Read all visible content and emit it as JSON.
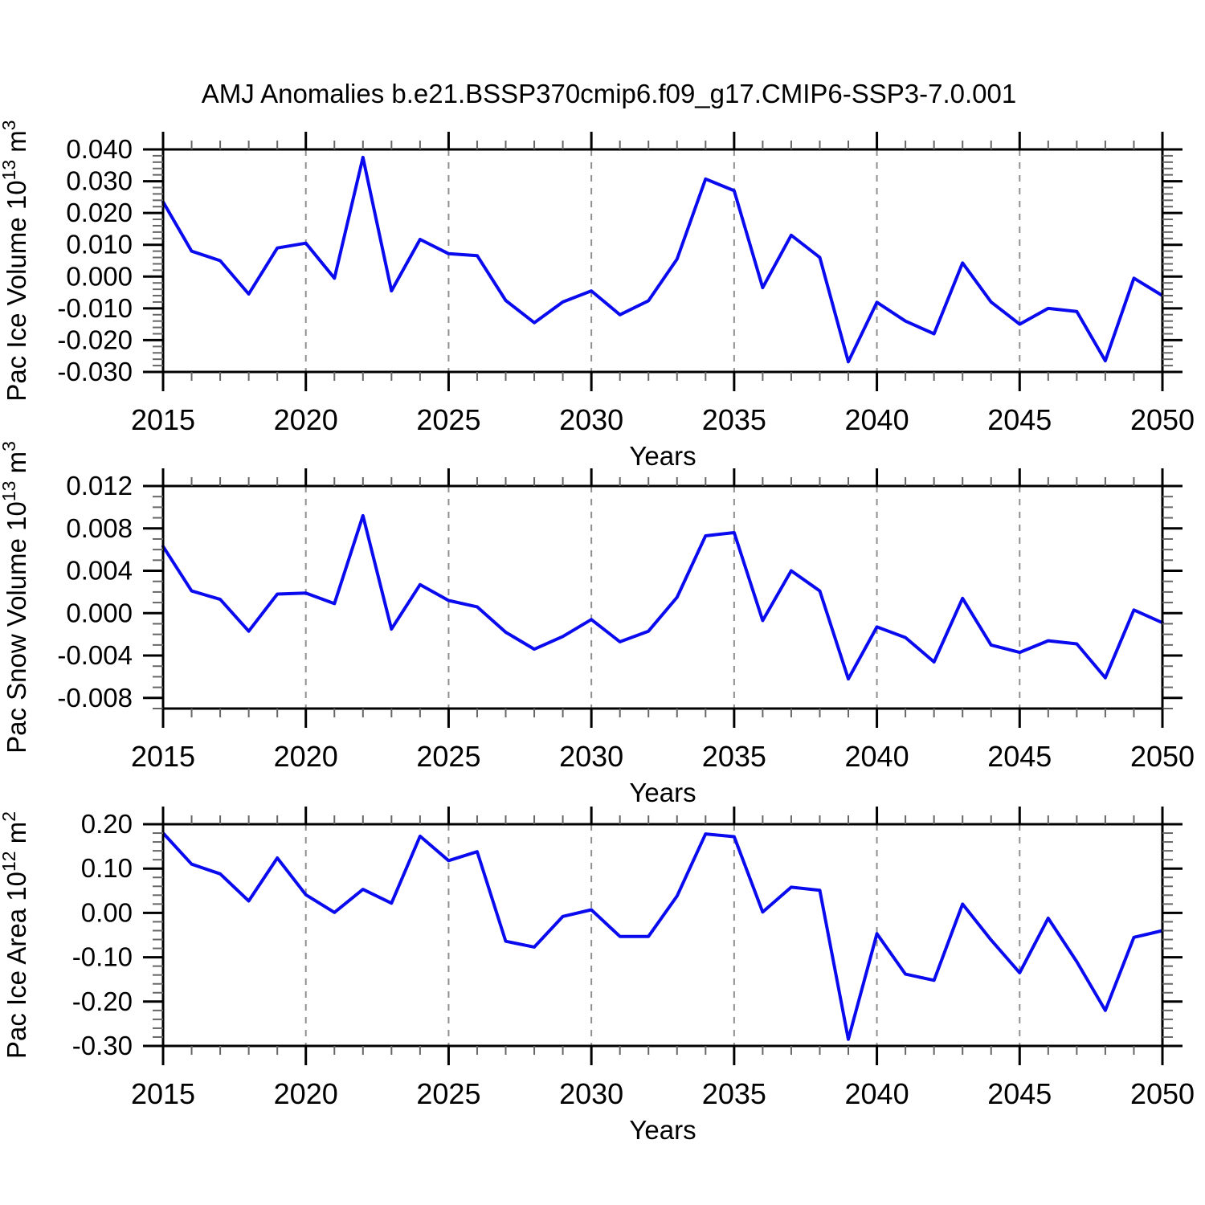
{
  "title": "AMJ Anomalies b.e21.BSSP370cmip6.f09_g17.CMIP6-SSP3-7.0.001",
  "colors": {
    "line": "#0a0aee",
    "axis": "#000000",
    "minor_tick": "#666666",
    "grid": "#8f8f8f"
  },
  "x_axis": {
    "label": "Years",
    "range": [
      2015,
      2050
    ],
    "major_tick_years": [
      2015,
      2020,
      2025,
      2030,
      2035,
      2040,
      2045,
      2050
    ],
    "major_tick_labels": [
      "2015",
      "2020",
      "2025",
      "2030",
      "2035",
      "2040",
      "2045",
      "2050"
    ],
    "minor_step": 1,
    "grid_years": [
      2020,
      2025,
      2030,
      2035,
      2040,
      2045
    ],
    "grid_style": "dashed"
  },
  "chart_data": [
    {
      "type": "line",
      "ylabel": "Pac Ice Volume 10^13 m^3",
      "ylabel_parts": [
        {
          "text": "Pac Ice Volume 10"
        },
        {
          "sup": "13"
        },
        {
          "text": " m"
        },
        {
          "sup": "3"
        }
      ],
      "ylim": [
        -0.03,
        0.04
      ],
      "y_minor_step": 0.002,
      "y_ticks": [
        {
          "v": 0.04,
          "label": "0.040"
        },
        {
          "v": 0.03,
          "label": "0.030"
        },
        {
          "v": 0.02,
          "label": "0.020"
        },
        {
          "v": 0.01,
          "label": "0.010"
        },
        {
          "v": 0.0,
          "label": "0.000"
        },
        {
          "v": -0.01,
          "label": "-0.010"
        },
        {
          "v": -0.02,
          "label": "-0.020"
        },
        {
          "v": -0.03,
          "label": "-0.030"
        }
      ],
      "x": [
        2015,
        2016,
        2017,
        2018,
        2019,
        2020,
        2021,
        2022,
        2023,
        2024,
        2025,
        2026,
        2027,
        2028,
        2029,
        2030,
        2031,
        2032,
        2033,
        2034,
        2035,
        2036,
        2037,
        2038,
        2039,
        2040,
        2041,
        2042,
        2043,
        2044,
        2045,
        2046,
        2047,
        2048,
        2049,
        2050
      ],
      "values": [
        0.0235,
        0.008,
        0.005,
        -0.0055,
        0.009,
        0.0105,
        -0.0005,
        0.0375,
        -0.0045,
        0.0117,
        0.0072,
        0.0066,
        -0.0075,
        -0.0145,
        -0.008,
        -0.0045,
        -0.012,
        -0.0076,
        0.0055,
        0.0307,
        0.027,
        -0.0035,
        0.013,
        0.006,
        -0.0268,
        -0.0081,
        -0.014,
        -0.018,
        0.0043,
        -0.008,
        -0.015,
        -0.01,
        -0.011,
        -0.0265,
        -0.0005,
        -0.006
      ]
    },
    {
      "type": "line",
      "ylabel": "Pac Snow Volume 10^13 m^3",
      "ylabel_parts": [
        {
          "text": "Pac Snow Volume 10"
        },
        {
          "sup": "13"
        },
        {
          "text": " m"
        },
        {
          "sup": "3"
        }
      ],
      "ylim": [
        -0.009,
        0.012
      ],
      "y_minor_step": 0.001,
      "y_ticks": [
        {
          "v": 0.012,
          "label": "0.012"
        },
        {
          "v": 0.008,
          "label": "0.008"
        },
        {
          "v": 0.004,
          "label": "0.004"
        },
        {
          "v": 0.0,
          "label": "0.000"
        },
        {
          "v": -0.004,
          "label": "-0.004"
        },
        {
          "v": -0.008,
          "label": "-0.008"
        }
      ],
      "x": [
        2015,
        2016,
        2017,
        2018,
        2019,
        2020,
        2021,
        2022,
        2023,
        2024,
        2025,
        2026,
        2027,
        2028,
        2029,
        2030,
        2031,
        2032,
        2033,
        2034,
        2035,
        2036,
        2037,
        2038,
        2039,
        2040,
        2041,
        2042,
        2043,
        2044,
        2045,
        2046,
        2047,
        2048,
        2049,
        2050
      ],
      "values": [
        0.0063,
        0.0021,
        0.0013,
        -0.0017,
        0.0018,
        0.0019,
        0.0009,
        0.0092,
        -0.0015,
        0.0027,
        0.0012,
        0.0006,
        -0.0018,
        -0.0034,
        -0.0022,
        -0.0006,
        -0.0027,
        -0.0017,
        0.0015,
        0.0073,
        0.0076,
        -0.0007,
        0.004,
        0.0021,
        -0.0062,
        -0.0013,
        -0.0023,
        -0.0046,
        0.0014,
        -0.003,
        -0.0037,
        -0.0026,
        -0.0029,
        -0.0061,
        0.0003,
        -0.0009
      ]
    },
    {
      "type": "line",
      "ylabel": "Pac Ice Area 10^12 m^2",
      "ylabel_parts": [
        {
          "text": "Pac Ice Area 10"
        },
        {
          "sup": "12"
        },
        {
          "text": " m"
        },
        {
          "sup": "2"
        }
      ],
      "ylim": [
        -0.3,
        0.2
      ],
      "y_minor_step": 0.02,
      "y_ticks": [
        {
          "v": 0.2,
          "label": "0.20"
        },
        {
          "v": 0.1,
          "label": "0.10"
        },
        {
          "v": 0.0,
          "label": "0.00"
        },
        {
          "v": -0.1,
          "label": "-0.10"
        },
        {
          "v": -0.2,
          "label": "-0.20"
        },
        {
          "v": -0.3,
          "label": "-0.30"
        }
      ],
      "x": [
        2015,
        2016,
        2017,
        2018,
        2019,
        2020,
        2021,
        2022,
        2023,
        2024,
        2025,
        2026,
        2027,
        2028,
        2029,
        2030,
        2031,
        2032,
        2033,
        2034,
        2035,
        2036,
        2037,
        2038,
        2039,
        2040,
        2041,
        2042,
        2043,
        2044,
        2045,
        2046,
        2047,
        2048,
        2049,
        2050
      ],
      "values": [
        0.18,
        0.11,
        0.088,
        0.027,
        0.124,
        0.041,
        0.001,
        0.053,
        0.022,
        0.173,
        0.118,
        0.138,
        -0.064,
        -0.077,
        -0.008,
        0.007,
        -0.053,
        -0.053,
        0.038,
        0.178,
        0.172,
        0.002,
        0.058,
        0.051,
        -0.285,
        -0.047,
        -0.138,
        -0.152,
        0.02,
        -0.061,
        -0.135,
        -0.012,
        -0.11,
        -0.22,
        -0.055,
        -0.04
      ]
    }
  ]
}
